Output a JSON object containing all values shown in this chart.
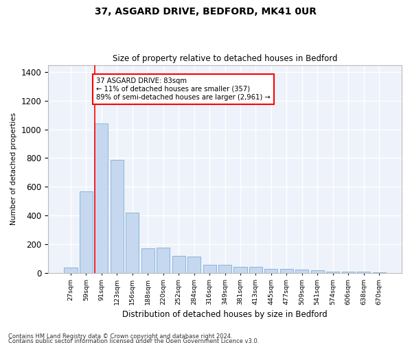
{
  "title1": "37, ASGARD DRIVE, BEDFORD, MK41 0UR",
  "title2": "Size of property relative to detached houses in Bedford",
  "xlabel": "Distribution of detached houses by size in Bedford",
  "ylabel": "Number of detached properties",
  "footnote1": "Contains HM Land Registry data © Crown copyright and database right 2024.",
  "footnote2": "Contains public sector information licensed under the Open Government Licence v3.0.",
  "bar_color": "#c5d8f0",
  "bar_edge_color": "#8ab4d8",
  "background_color": "#eef2fa",
  "grid_color": "#ffffff",
  "annotation_line1": "37 ASGARD DRIVE: 83sqm",
  "annotation_line2": "← 11% of detached houses are smaller (357)",
  "annotation_line3": "89% of semi-detached houses are larger (2,961) →",
  "red_line_index": 2,
  "categories": [
    "27sqm",
    "59sqm",
    "91sqm",
    "123sqm",
    "156sqm",
    "188sqm",
    "220sqm",
    "252sqm",
    "284sqm",
    "316sqm",
    "349sqm",
    "381sqm",
    "413sqm",
    "445sqm",
    "477sqm",
    "509sqm",
    "541sqm",
    "574sqm",
    "606sqm",
    "638sqm",
    "670sqm"
  ],
  "values": [
    38,
    570,
    1040,
    790,
    420,
    170,
    175,
    120,
    115,
    55,
    55,
    40,
    40,
    25,
    25,
    20,
    18,
    10,
    10,
    8,
    5
  ],
  "ylim": [
    0,
    1450
  ],
  "yticks": [
    0,
    200,
    400,
    600,
    800,
    1000,
    1200,
    1400
  ]
}
